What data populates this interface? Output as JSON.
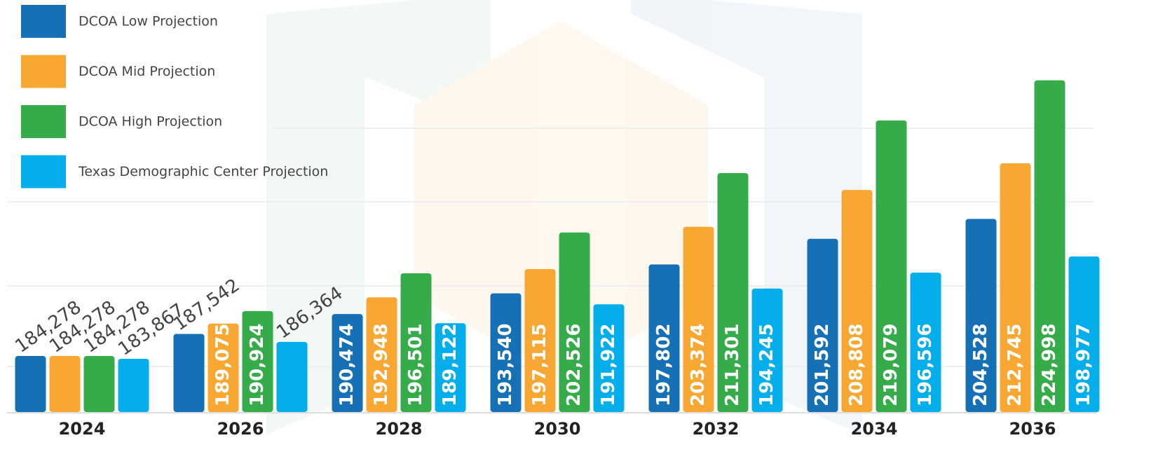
{
  "chart_data": {
    "type": "bar",
    "categories": [
      "2024",
      "2026",
      "2028",
      "2030",
      "2032",
      "2034",
      "2036"
    ],
    "series": [
      {
        "name": "DCOA Low Projection",
        "color": "#1570b5",
        "values": [
          184278,
          187542,
          190474,
          193540,
          197802,
          201592,
          204528
        ],
        "value_labels": [
          "184,278",
          "187,542",
          "190,474",
          "193,540",
          "197,802",
          "201,592",
          "204,528"
        ]
      },
      {
        "name": "DCOA Mid Projection",
        "color": "#f8a832",
        "values": [
          184278,
          189075,
          192948,
          197115,
          203374,
          208808,
          212745
        ],
        "value_labels": [
          "184,278",
          "189,075",
          "192,948",
          "197,115",
          "203,374",
          "208,808",
          "212,745"
        ]
      },
      {
        "name": "DCOA High Projection",
        "color": "#36ab4a",
        "values": [
          184278,
          190924,
          196501,
          202526,
          211301,
          219079,
          224998
        ],
        "value_labels": [
          "184,278",
          "190,924",
          "196,501",
          "202,526",
          "211,301",
          "219,079",
          "224,998"
        ]
      },
      {
        "name": "Texas Demographic Center Projection",
        "color": "#03aeeb",
        "values": [
          183867,
          186364,
          189122,
          191922,
          194245,
          196596,
          198977
        ],
        "value_labels": [
          "183,867",
          "186,364",
          "189,122",
          "191,922",
          "194,245",
          "196,596",
          "198,977"
        ]
      }
    ],
    "ylim": [
      176000,
      226000
    ],
    "legend": "top-left"
  }
}
